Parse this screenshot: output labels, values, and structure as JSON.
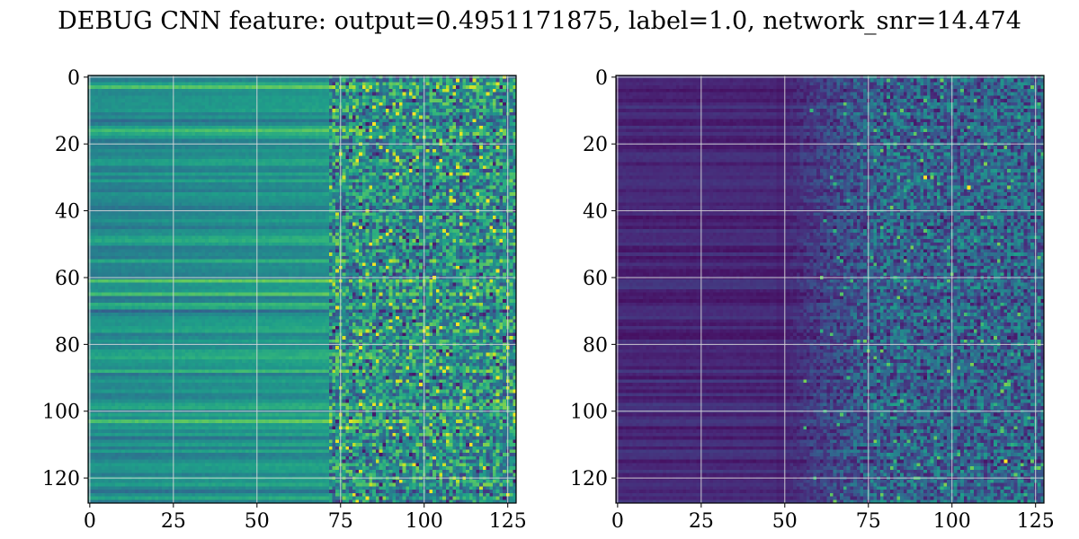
{
  "title": "DEBUG CNN feature: output=0.4951171875, label=1.0, network_snr=14.474",
  "chart_data": [
    {
      "type": "heatmap",
      "panel": "left",
      "colormap": "viridis",
      "shape": [
        128,
        128
      ],
      "xlim": [
        0,
        127
      ],
      "ylim": [
        127,
        0
      ],
      "xticks": [
        0,
        25,
        50,
        75,
        100,
        125
      ],
      "yticks": [
        0,
        20,
        40,
        60,
        80,
        100,
        120
      ],
      "grid": true,
      "pattern": "horizontal bands for columns 0–75, noisy bright speckle for columns 75–127",
      "value_range": [
        0.2,
        0.8
      ],
      "bright_rows": [
        3,
        16,
        55,
        61,
        65,
        68,
        88,
        101,
        103
      ],
      "dark_rows": [
        13,
        33,
        45,
        70,
        78,
        92,
        108,
        124
      ]
    },
    {
      "type": "heatmap",
      "panel": "right",
      "colormap": "viridis",
      "shape": [
        128,
        128
      ],
      "xlim": [
        0,
        127
      ],
      "ylim": [
        127,
        0
      ],
      "xticks": [
        0,
        25,
        50,
        75,
        100,
        125
      ],
      "yticks": [
        0,
        20,
        40,
        60,
        80,
        100,
        120
      ],
      "grid": true,
      "pattern": "dark purple bands for columns 0–50, noisy teal speckle for columns 50–127",
      "value_range": [
        0.0,
        0.55
      ],
      "bright_points": [
        [
          116,
          115
        ],
        [
          92,
          30
        ],
        [
          105,
          33
        ]
      ]
    }
  ]
}
